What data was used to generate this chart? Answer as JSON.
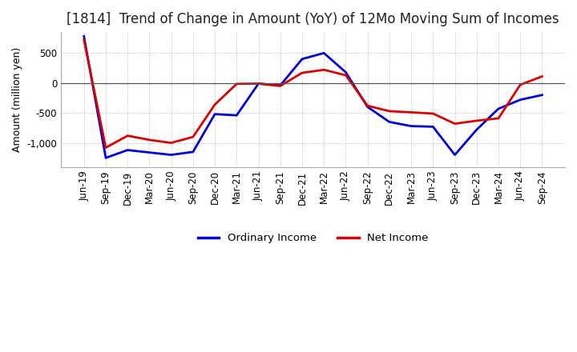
{
  "title": "[1814]  Trend of Change in Amount (YoY) of 12Mo Moving Sum of Incomes",
  "ylabel": "Amount (million yen)",
  "x_labels": [
    "Jun-19",
    "Sep-19",
    "Dec-19",
    "Mar-20",
    "Jun-20",
    "Sep-20",
    "Dec-20",
    "Mar-21",
    "Jun-21",
    "Sep-21",
    "Dec-21",
    "Mar-22",
    "Jun-22",
    "Sep-22",
    "Dec-22",
    "Mar-23",
    "Jun-23",
    "Sep-23",
    "Dec-23",
    "Mar-24",
    "Jun-24",
    "Sep-24"
  ],
  "ordinary_income": [
    780,
    -1250,
    -1120,
    -1160,
    -1200,
    -1150,
    -520,
    -540,
    -10,
    -40,
    400,
    500,
    180,
    -400,
    -650,
    -720,
    -730,
    -1200,
    -780,
    -430,
    -280,
    -200
  ],
  "net_income": [
    720,
    -1080,
    -880,
    -950,
    -1000,
    -900,
    -360,
    -15,
    -10,
    -50,
    170,
    220,
    130,
    -380,
    -470,
    -490,
    -510,
    -680,
    -630,
    -590,
    -30,
    110
  ],
  "ordinary_color": "#0000dd",
  "net_color": "#dd0000",
  "ylim": [
    -1400,
    850
  ],
  "yticks": [
    -1000,
    -500,
    0,
    500
  ],
  "background_color": "#ffffff",
  "grid_color": "#aaaaaa",
  "legend_labels": [
    "Ordinary Income",
    "Net Income"
  ],
  "title_fontsize": 12,
  "axis_fontsize": 9,
  "tick_fontsize": 8.5
}
